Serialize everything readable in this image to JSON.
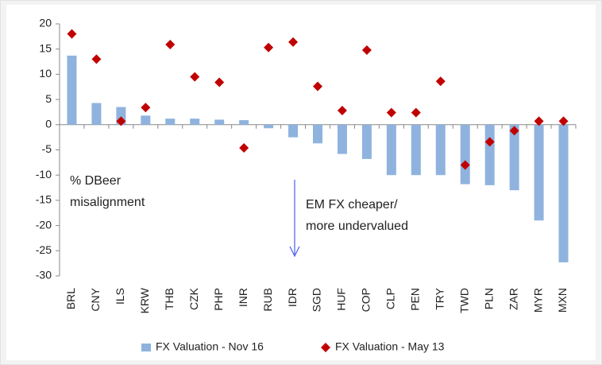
{
  "chart_data": {
    "type": "bar",
    "categories": [
      "BRL",
      "CNY",
      "ILS",
      "KRW",
      "THB",
      "CZK",
      "PHP",
      "INR",
      "RUB",
      "IDR",
      "SGD",
      "HUF",
      "COP",
      "CLP",
      "PEN",
      "TRY",
      "TWD",
      "PLN",
      "ZAR",
      "MYR",
      "MXN"
    ],
    "series": [
      {
        "name": "FX Valuation - Nov 16",
        "type": "bar",
        "color": "#8fb3de",
        "values": [
          13.7,
          4.3,
          3.5,
          1.8,
          1.2,
          1.2,
          1.0,
          0.9,
          -0.7,
          -2.5,
          -3.7,
          -5.8,
          -6.8,
          -10,
          -10,
          -10,
          -11.8,
          -12,
          -13,
          -19,
          -27.3
        ]
      },
      {
        "name": "FX Valuation - May 13",
        "type": "scatter",
        "color": "#c00000",
        "values": [
          18,
          13,
          0.7,
          3.4,
          15.9,
          9.5,
          8.4,
          -4.6,
          15.3,
          16.4,
          7.6,
          2.8,
          14.8,
          2.4,
          2.4,
          8.6,
          -8,
          -3.4,
          -1.2,
          0.7,
          0.7
        ]
      }
    ],
    "ylim": [
      -30,
      20
    ],
    "yticks": [
      -30,
      -25,
      -20,
      -15,
      -10,
      -5,
      0,
      5,
      10,
      15,
      20
    ],
    "annotations": [
      [
        "% DBeer",
        "misalignment"
      ],
      [
        "EM FX cheaper/",
        "more undervalued"
      ]
    ],
    "legend": "bottom"
  }
}
